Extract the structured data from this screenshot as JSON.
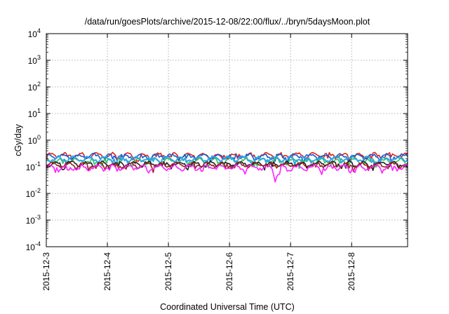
{
  "chart_data": {
    "type": "line",
    "title": "/data/run/goesPlots/archive/2015-12-08/22:00/flux/../bryn/5daysMoon.plot",
    "xlabel": "Coordinated Universal Time (UTC)",
    "ylabel": "cGy/day",
    "x_ticks": [
      "2015-12-3",
      "2015-12-4",
      "2015-12-5",
      "2015-12-6",
      "2015-12-7",
      "2015-12-8"
    ],
    "y_ticks": [
      {
        "base": "10",
        "exp": "4"
      },
      {
        "base": "10",
        "exp": "3"
      },
      {
        "base": "10",
        "exp": "2"
      },
      {
        "base": "10",
        "exp": "1"
      },
      {
        "base": "10",
        "exp": "0"
      },
      {
        "base": "10",
        "exp": "-1"
      },
      {
        "base": "10",
        "exp": "-2"
      },
      {
        "base": "10",
        "exp": "-3"
      },
      {
        "base": "10",
        "exp": "-4"
      }
    ],
    "y_scale": "log",
    "xlim": [
      "2015-12-03",
      "2015-12-08 22:00"
    ],
    "ylim": [
      0.0001,
      10000
    ],
    "grid": true,
    "series": [
      {
        "color": "#e02020",
        "level": 0.27
      },
      {
        "color": "#1a5cc8",
        "level": 0.25
      },
      {
        "color": "#30c060",
        "level": 0.17
      },
      {
        "color": "#2aa8e8",
        "level": 0.2
      },
      {
        "color": "#202020",
        "level": 0.13
      },
      {
        "color": "#9a2020",
        "level": 0.12
      },
      {
        "color": "#ff20ff",
        "level": 0.095
      }
    ]
  }
}
